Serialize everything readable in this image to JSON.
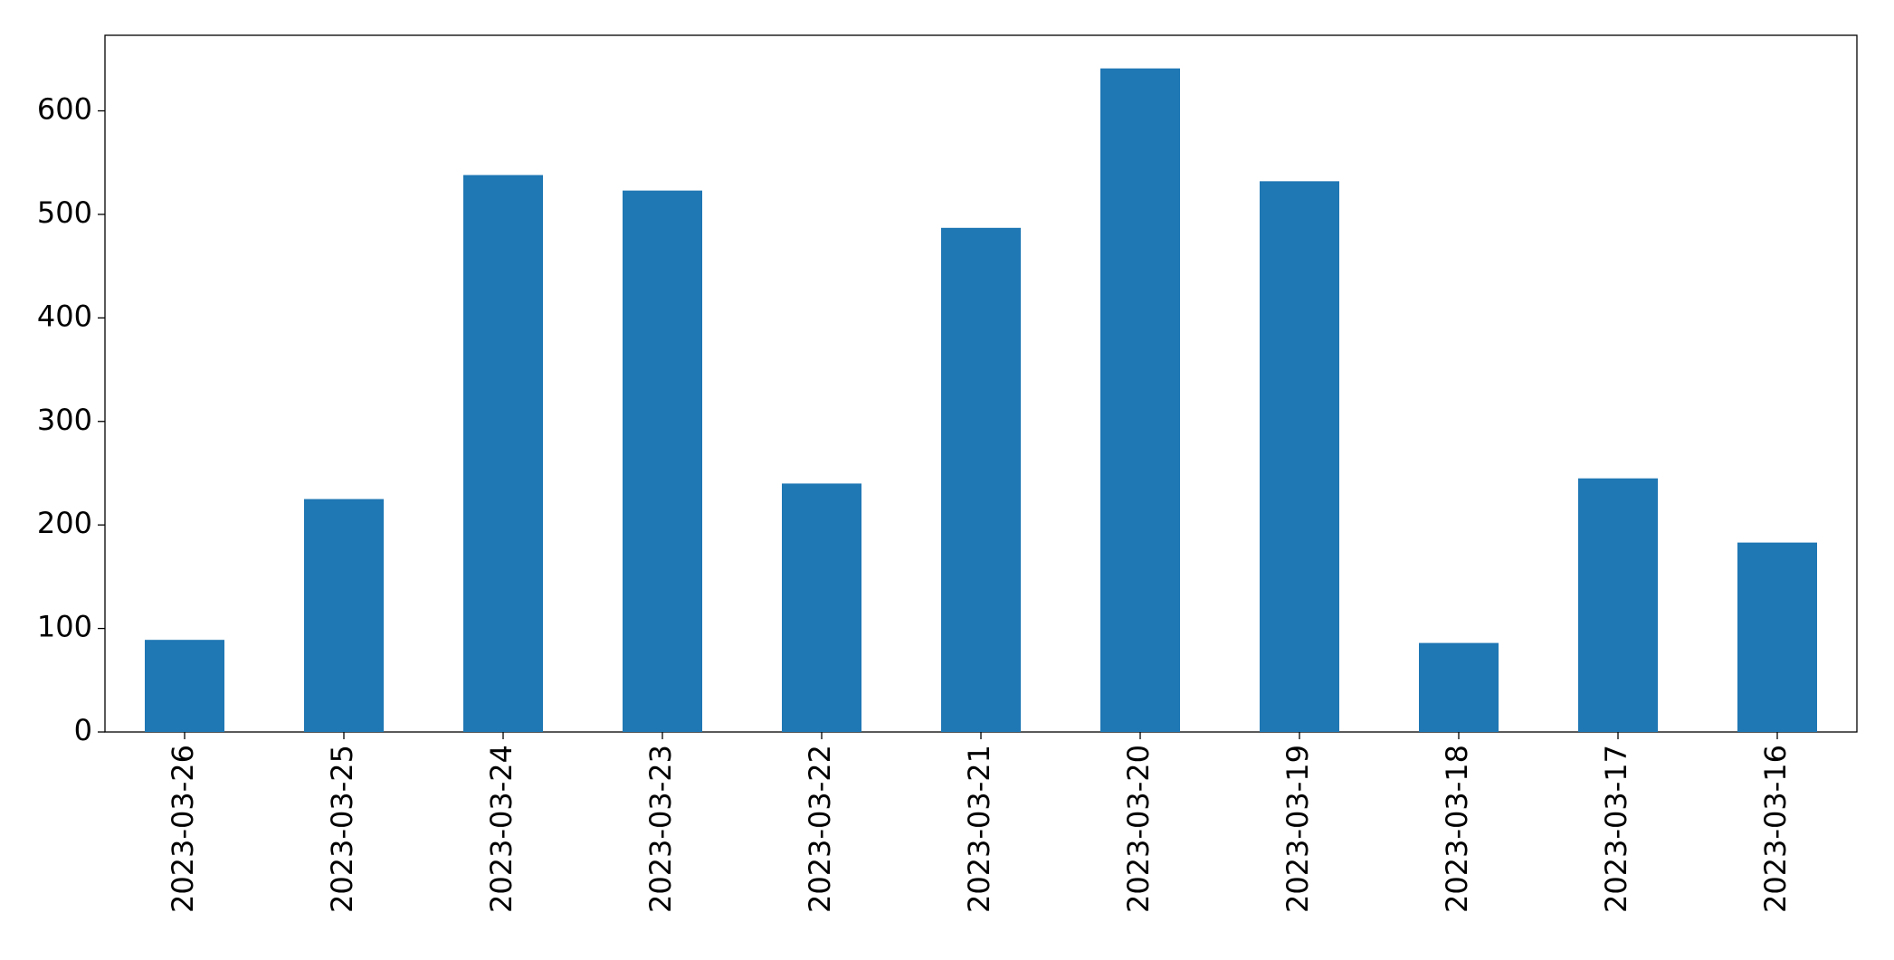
{
  "chart_data": {
    "type": "bar",
    "categories": [
      "2023-03-26",
      "2023-03-25",
      "2023-03-24",
      "2023-03-23",
      "2023-03-22",
      "2023-03-21",
      "2023-03-20",
      "2023-03-19",
      "2023-03-18",
      "2023-03-17",
      "2023-03-16"
    ],
    "values": [
      89,
      225,
      538,
      523,
      240,
      487,
      641,
      532,
      86,
      245,
      183
    ],
    "color": "#1f77b4",
    "ylim": [
      0,
      673
    ],
    "yticks": [
      0,
      100,
      200,
      300,
      400,
      500,
      600
    ],
    "grid": false
  }
}
